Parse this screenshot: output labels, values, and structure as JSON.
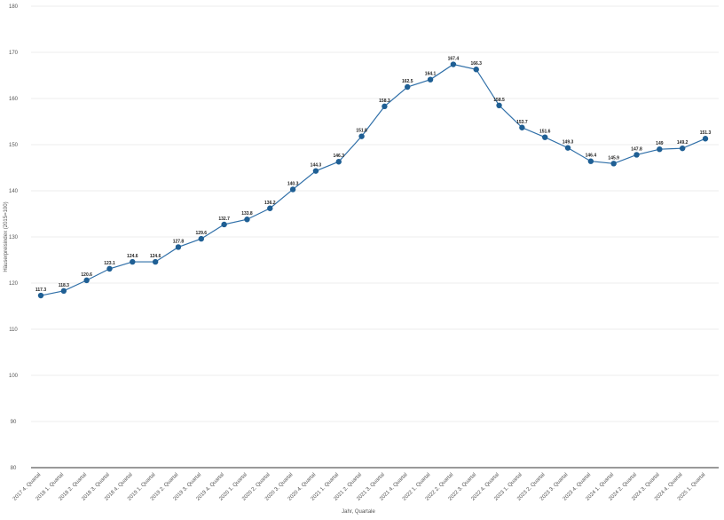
{
  "chart_data": {
    "type": "line",
    "x_label": "Jahr, Quartale",
    "y_label": "Häuserpreisindex (2015=100)",
    "categories": [
      "2017 4. Quartal",
      "2018 1. Quartal",
      "2018 2. Quartal",
      "2018 3. Quartal",
      "2018 4. Quartal",
      "2019 1. Quartal",
      "2019 2. Quartal",
      "2019 3. Quartal",
      "2019 4. Quartal",
      "2020 1. Quartal",
      "2020 2. Quartal",
      "2020 3. Quartal",
      "2020 4. Quartal",
      "2021 1. Quartal",
      "2021 2. Quartal",
      "2021 3. Quartal",
      "2021 4. Quartal",
      "2022 1. Quartal",
      "2022 2. Quartal",
      "2022 3. Quartal",
      "2022 4. Quartal",
      "2023 1. Quartal",
      "2023 2. Quartal",
      "2023 3. Quartal",
      "2023 4. Quartal",
      "2024 1. Quartal",
      "2024 2. Quartal",
      "2024 3. Quartal",
      "2024 4. Quartal",
      "2025 1. Quartal"
    ],
    "series": [
      {
        "color": "#2f6fa8",
        "values": [
          117.3,
          118.3,
          120.6,
          123.1,
          124.6,
          124.6,
          127.8,
          129.6,
          132.7,
          133.8,
          136.2,
          140.3,
          144.3,
          146.3,
          151.8,
          158.3,
          162.5,
          164.1,
          167.4,
          166.3,
          158.5,
          153.7,
          151.6,
          149.3,
          146.4,
          145.9,
          147.8,
          149,
          149.2,
          151.3
        ]
      }
    ],
    "ylim": [
      80,
      180
    ],
    "yticks": [
      80,
      90,
      100,
      110,
      120,
      130,
      140,
      150,
      160,
      170,
      180
    ],
    "grid": true
  }
}
